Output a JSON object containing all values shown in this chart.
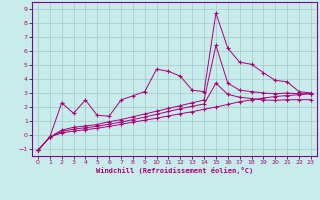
{
  "xlabel": "Windchill (Refroidissement éolien,°C)",
  "bg_color": "#c8ecec",
  "grid_color": "#a0c8c8",
  "line_color": "#aa0077",
  "spine_color": "#880088",
  "xlim": [
    -0.5,
    23.5
  ],
  "ylim": [
    -1.5,
    9.5
  ],
  "xticks": [
    0,
    1,
    2,
    3,
    4,
    5,
    6,
    7,
    8,
    9,
    10,
    11,
    12,
    13,
    14,
    15,
    16,
    17,
    18,
    19,
    20,
    21,
    22,
    23
  ],
  "yticks": [
    -1,
    0,
    1,
    2,
    3,
    4,
    5,
    6,
    7,
    8,
    9
  ],
  "line1_x": [
    0,
    1,
    2,
    3,
    4,
    5,
    6,
    7,
    8,
    9,
    10,
    11,
    12,
    13,
    14,
    15,
    16,
    17,
    18,
    19,
    20,
    21,
    22,
    23
  ],
  "line1_y": [
    -1.1,
    -0.15,
    2.3,
    1.55,
    2.5,
    1.4,
    1.35,
    2.5,
    2.8,
    3.1,
    4.7,
    4.55,
    4.2,
    3.2,
    3.1,
    8.7,
    6.2,
    5.2,
    5.05,
    4.45,
    3.9,
    3.8,
    3.1,
    3.0
  ],
  "line2_x": [
    0,
    1,
    2,
    3,
    4,
    5,
    6,
    7,
    8,
    9,
    10,
    11,
    12,
    13,
    14,
    15,
    16,
    17,
    18,
    19,
    20,
    21,
    22,
    23
  ],
  "line2_y": [
    -1.1,
    -0.15,
    0.35,
    0.55,
    0.65,
    0.75,
    0.95,
    1.1,
    1.3,
    1.5,
    1.7,
    1.9,
    2.1,
    2.3,
    2.5,
    6.4,
    3.7,
    3.2,
    3.1,
    3.0,
    2.95,
    3.0,
    2.95,
    2.95
  ],
  "line3_x": [
    0,
    1,
    2,
    3,
    4,
    5,
    6,
    7,
    8,
    9,
    10,
    11,
    12,
    13,
    14,
    15,
    16,
    17,
    18,
    19,
    20,
    21,
    22,
    23
  ],
  "line3_y": [
    -1.1,
    -0.15,
    0.25,
    0.42,
    0.52,
    0.62,
    0.78,
    0.92,
    1.1,
    1.28,
    1.48,
    1.68,
    1.88,
    2.05,
    2.22,
    3.7,
    2.9,
    2.7,
    2.6,
    2.5,
    2.48,
    2.52,
    2.52,
    2.52
  ],
  "line4_x": [
    0,
    1,
    2,
    3,
    4,
    5,
    6,
    7,
    8,
    9,
    10,
    11,
    12,
    13,
    14,
    15,
    16,
    17,
    18,
    19,
    20,
    21,
    22,
    23
  ],
  "line4_y": [
    -1.1,
    -0.15,
    0.15,
    0.28,
    0.38,
    0.48,
    0.62,
    0.76,
    0.92,
    1.06,
    1.2,
    1.36,
    1.52,
    1.66,
    1.84,
    2.0,
    2.18,
    2.38,
    2.5,
    2.64,
    2.75,
    2.82,
    2.88,
    2.95
  ]
}
